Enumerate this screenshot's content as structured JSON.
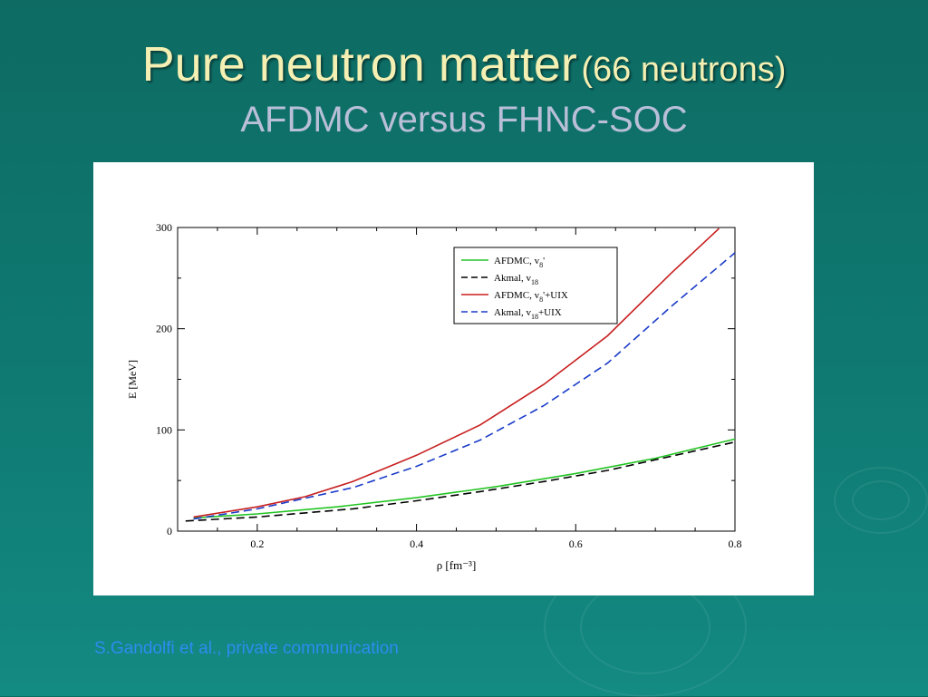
{
  "slide": {
    "title_main": "Pure neutron matter",
    "title_paren": "(66 neutrons)",
    "subtitle": "AFDMC versus FHNC-SOC",
    "citation": "S.Gandolfi et al., private communication"
  },
  "colors": {
    "title": "#f4efb2",
    "subtitle": "#b9bfd8",
    "citation": "#2e8cf0",
    "afdmc_v8": "#22c422",
    "akmal_v18": "#000000",
    "afdmc_v8_uix": "#c81e1e",
    "akmal_v18_uix": "#1a3bc8"
  },
  "chart_data": {
    "type": "line",
    "xlabel": "ρ  [fm⁻³]",
    "ylabel": "E [MeV]",
    "xlim": [
      0.1,
      0.8
    ],
    "ylim": [
      0,
      300
    ],
    "xticks": [
      0.2,
      0.4,
      0.6,
      0.8
    ],
    "yticks": [
      0,
      100,
      200,
      300
    ],
    "grid": false,
    "legend_position": "top-right",
    "series": [
      {
        "name": "AFDMC, v8'",
        "legend_label": {
          "base": "AFDMC, v",
          "sub": "8",
          "after": "'"
        },
        "style": "solid",
        "color": "#22c422",
        "x": [
          0.12,
          0.2,
          0.3,
          0.4,
          0.5,
          0.6,
          0.7,
          0.8
        ],
        "y": [
          13,
          17,
          24,
          33,
          44,
          57,
          72,
          91
        ]
      },
      {
        "name": "Akmal, v18",
        "legend_label": {
          "base": "Akmal, v",
          "sub": "18",
          "after": ""
        },
        "style": "dashed",
        "color": "#000000",
        "x": [
          0.11,
          0.2,
          0.32,
          0.4,
          0.48,
          0.56,
          0.64,
          0.8
        ],
        "y": [
          10,
          14,
          22,
          30,
          39,
          49,
          60,
          88
        ]
      },
      {
        "name": "AFDMC, v8'+UIX",
        "legend_label": {
          "base": "AFDMC, v",
          "sub": "8",
          "after": "'+UIX"
        },
        "style": "solid",
        "color": "#c81e1e",
        "x": [
          0.12,
          0.2,
          0.26,
          0.32,
          0.4,
          0.48,
          0.56,
          0.64,
          0.72,
          0.78
        ],
        "y": [
          14,
          24,
          34,
          49,
          75,
          105,
          145,
          193,
          255,
          299
        ]
      },
      {
        "name": "Akmal, v18+UIX",
        "legend_label": {
          "base": "Akmal, v",
          "sub": "18",
          "after": "+UIX"
        },
        "style": "dashed",
        "color": "#1a3bc8",
        "x": [
          0.12,
          0.2,
          0.32,
          0.4,
          0.48,
          0.56,
          0.64,
          0.72,
          0.8
        ],
        "y": [
          12,
          22,
          43,
          64,
          90,
          124,
          166,
          222,
          275
        ]
      }
    ]
  }
}
